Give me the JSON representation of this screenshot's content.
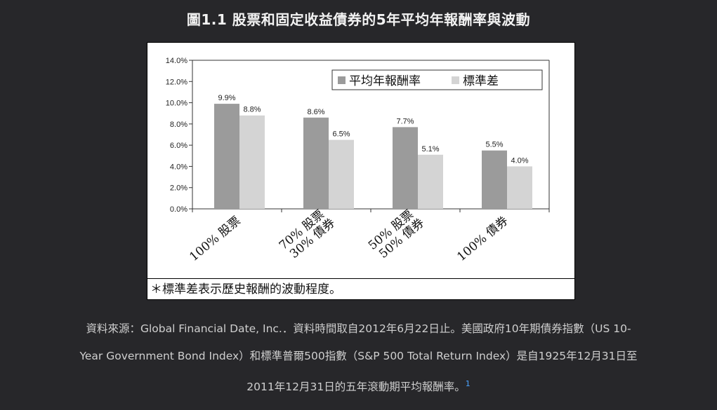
{
  "figure": {
    "title": "圖1.1 股票和固定收益債券的5年平均年報酬率與波動"
  },
  "chart_data": {
    "type": "bar",
    "categories": [
      "100% 股票",
      "70% 股票\n30% 債券",
      "50% 股票\n50% 債券",
      "100% 債券"
    ],
    "series": [
      {
        "name": "平均年報酬率",
        "values": [
          9.9,
          8.6,
          7.7,
          5.5
        ],
        "labels": [
          "9.9%",
          "8.6%",
          "7.7%",
          "5.5%"
        ],
        "color": "#9b9b9b"
      },
      {
        "name": "標準差",
        "values": [
          8.8,
          6.5,
          5.1,
          4.0
        ],
        "labels": [
          "8.8%",
          "6.5%",
          "5.1%",
          "4.0%"
        ],
        "color": "#d4d4d4"
      }
    ],
    "ylim": [
      0,
      14
    ],
    "yticks": [
      "0.0%",
      "2.0%",
      "4.0%",
      "6.0%",
      "8.0%",
      "10.0%",
      "12.0%",
      "14.0%"
    ],
    "title": "",
    "xlabel": "",
    "ylabel": "",
    "grid": false,
    "legend": "top-right"
  },
  "note": "＊標準差表示歷史報酬的波動程度。",
  "source": {
    "line1": "資料來源：Global Financial Date, Inc.．資料時間取自2012年6月22日止。美國政府10年期債券指數（US 10-",
    "line2": "Year Government Bond Index）和標準普爾500指數（S&P 500 Total Return Index）是自1925年12月31日至",
    "line3": "2011年12月31日的五年滾動期平均報酬率。",
    "footnote": "1"
  }
}
